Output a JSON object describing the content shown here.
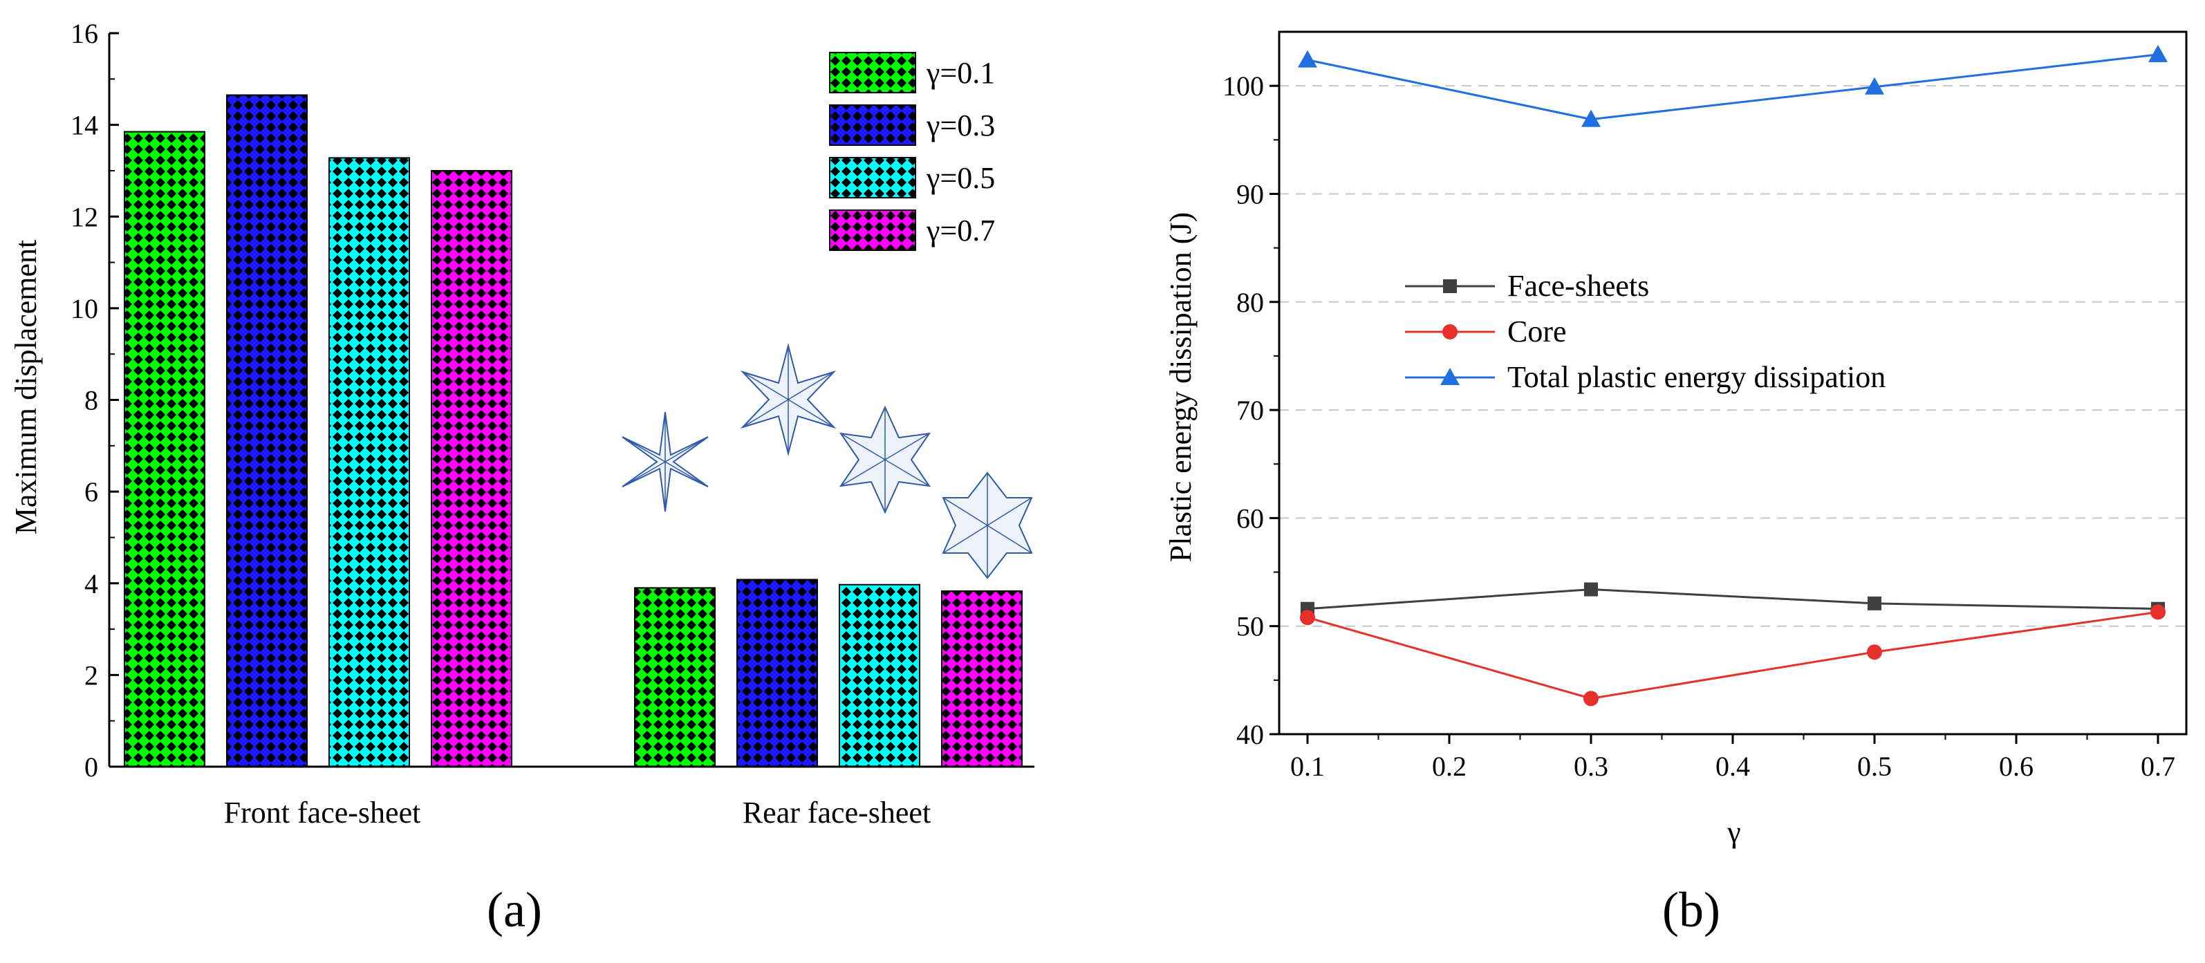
{
  "chart_data": [
    {
      "type": "bar",
      "panel_label": "(a)",
      "ylabel": "Maximum displacement",
      "xlabel": "",
      "ylim": [
        0,
        16
      ],
      "yticks": [
        0,
        2,
        4,
        6,
        8,
        10,
        12,
        14,
        16
      ],
      "categories": [
        "Front face-sheet",
        "Rear face-sheet"
      ],
      "series": [
        {
          "name": "γ=0.1",
          "color": "#00ff00",
          "values": [
            13.85,
            3.9
          ]
        },
        {
          "name": "γ=0.3",
          "color": "#1a1aff",
          "values": [
            14.65,
            4.08
          ]
        },
        {
          "name": "γ=0.5",
          "color": "#00ffff",
          "values": [
            13.28,
            3.97
          ]
        },
        {
          "name": "γ=0.7",
          "color": "#ff00ff",
          "values": [
            13.0,
            3.83
          ]
        }
      ],
      "legend_position": "top-right",
      "grid": false
    },
    {
      "type": "line",
      "panel_label": "(b)",
      "xlabel": "γ",
      "ylabel": "Plastic energy dissipation (J)",
      "xlim": [
        0.08,
        0.72
      ],
      "ylim": [
        40,
        105
      ],
      "xticks": [
        0.1,
        0.2,
        0.3,
        0.4,
        0.5,
        0.6,
        0.7
      ],
      "xtick_labels": [
        "0.1",
        "0.2",
        "0.3",
        "0.4",
        "0.5",
        "0.6",
        "0.7"
      ],
      "yticks": [
        40,
        50,
        60,
        70,
        80,
        90,
        100
      ],
      "x": [
        0.1,
        0.3,
        0.5,
        0.7
      ],
      "series": [
        {
          "name": "Face-sheets",
          "color": "#404040",
          "marker": "square",
          "values": [
            51.6,
            53.4,
            52.1,
            51.6
          ]
        },
        {
          "name": "Core",
          "color": "#e8302a",
          "marker": "circle",
          "values": [
            50.8,
            43.3,
            47.6,
            51.3
          ]
        },
        {
          "name": "Total plastic energy dissipation",
          "color": "#1f6fe0",
          "marker": "triangle",
          "values": [
            102.4,
            96.9,
            99.9,
            102.9
          ]
        }
      ],
      "legend_position": "center-left",
      "grid": "horizontal dashed"
    }
  ]
}
